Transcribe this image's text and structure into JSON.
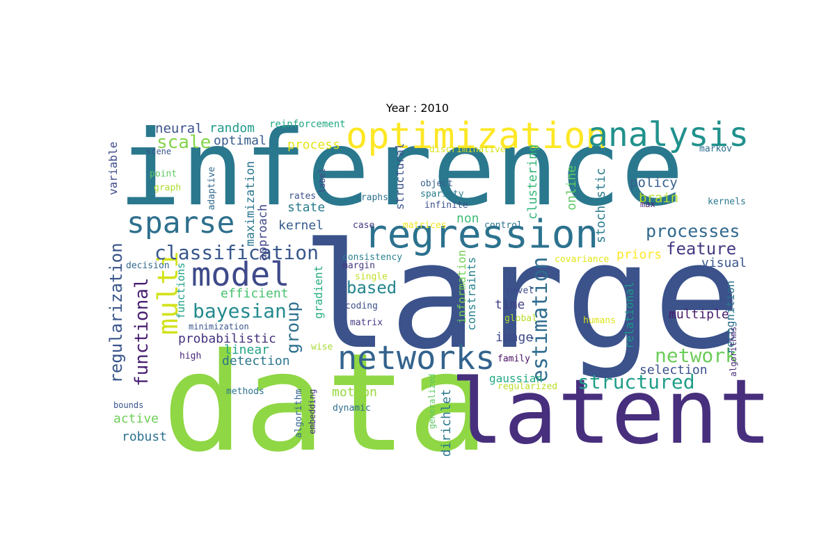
{
  "title": "Year : 2010",
  "words": [
    {
      "text": "inference",
      "color": "#2a788e"
    },
    {
      "text": "large",
      "color": "#3b528b"
    },
    {
      "text": "data",
      "color": "#8fd744"
    },
    {
      "text": "latent",
      "color": "#472f7d"
    },
    {
      "text": "optimization",
      "color": "#fde725"
    },
    {
      "text": "analysis",
      "color": "#21918c"
    },
    {
      "text": "regression",
      "color": "#2c728e"
    },
    {
      "text": "sparse",
      "color": "#2e6f8e"
    },
    {
      "text": "model",
      "color": "#3e4a89"
    },
    {
      "text": "networks",
      "color": "#33638d"
    },
    {
      "text": "multi",
      "color": "#d2e21b"
    },
    {
      "text": "classification",
      "color": "#38588c"
    },
    {
      "text": "regularization",
      "color": "#39568c"
    },
    {
      "text": "bayesian",
      "color": "#238a8d"
    },
    {
      "text": "functional",
      "color": "#481f70"
    },
    {
      "text": "estimation",
      "color": "#2f6c8e"
    },
    {
      "text": "structured",
      "color": "#1f9e89"
    },
    {
      "text": "network",
      "color": "#6ccd5a"
    },
    {
      "text": "processes",
      "color": "#31688e"
    },
    {
      "text": "group",
      "color": "#2d708e"
    },
    {
      "text": "feature",
      "color": "#443a83"
    },
    {
      "text": "based",
      "color": "#25858e"
    },
    {
      "text": "scale",
      "color": "#84d44b"
    },
    {
      "text": "maximization",
      "color": "#2a768e"
    },
    {
      "text": "approach",
      "color": "#3f4788"
    },
    {
      "text": "clustering",
      "color": "#35b779"
    },
    {
      "text": "online",
      "color": "#5ec962"
    },
    {
      "text": "stochastic",
      "color": "#297b8e"
    },
    {
      "text": "policy",
      "color": "#355f8d"
    },
    {
      "text": "brain",
      "color": "#b5de2b"
    },
    {
      "text": "neural",
      "color": "#3b528b"
    },
    {
      "text": "random",
      "color": "#1f9a8a"
    },
    {
      "text": "optimal",
      "color": "#375b8d"
    },
    {
      "text": "process",
      "color": "#e5e419"
    },
    {
      "text": "reinforcement",
      "color": "#22a884"
    },
    {
      "text": "state",
      "color": "#287c8e"
    },
    {
      "text": "kernel",
      "color": "#365c8d"
    },
    {
      "text": "non",
      "color": "#3dbc74"
    },
    {
      "text": "probabilistic",
      "color": "#46327e"
    },
    {
      "text": "linear",
      "color": "#20a386"
    },
    {
      "text": "detection",
      "color": "#2b758e"
    },
    {
      "text": "efficient",
      "color": "#48c16e"
    },
    {
      "text": "time",
      "color": "#424086"
    },
    {
      "text": "image",
      "color": "#3e4989"
    },
    {
      "text": "multiple",
      "color": "#481a6c"
    },
    {
      "text": "visual",
      "color": "#39558c"
    },
    {
      "text": "priors",
      "color": "#fde725"
    },
    {
      "text": "selection",
      "color": "#3b518b"
    },
    {
      "text": "recognition",
      "color": "#2c738e"
    },
    {
      "text": "relational",
      "color": "#1f968b"
    },
    {
      "text": "gradient",
      "color": "#27ad81"
    },
    {
      "text": "information",
      "color": "#75d054"
    },
    {
      "text": "constraints",
      "color": "#26828e"
    },
    {
      "text": "structural",
      "color": "#3a548c"
    },
    {
      "text": "gaussian",
      "color": "#23a983"
    },
    {
      "text": "motion",
      "color": "#95d840"
    },
    {
      "text": "dirichlet",
      "color": "#2a768e"
    },
    {
      "text": "active",
      "color": "#6ece58"
    },
    {
      "text": "robust",
      "color": "#2c718e"
    },
    {
      "text": "variable",
      "color": "#3e4a89"
    },
    {
      "text": "functions",
      "color": "#1fa188"
    },
    {
      "text": "consistency",
      "color": "#277f8e"
    },
    {
      "text": "margin",
      "color": "#453781"
    },
    {
      "text": "single",
      "color": "#c0df25"
    },
    {
      "text": "coding",
      "color": "#3c508b"
    },
    {
      "text": "matrix",
      "color": "#443983"
    },
    {
      "text": "wise",
      "color": "#a8db34"
    },
    {
      "text": "high",
      "color": "#482576"
    },
    {
      "text": "minimization",
      "color": "#3a548c"
    },
    {
      "text": "decision",
      "color": "#31688e"
    },
    {
      "text": "bounds",
      "color": "#39568c"
    },
    {
      "text": "methods",
      "color": "#2c728e"
    },
    {
      "text": "algorithm",
      "color": "#33638d"
    },
    {
      "text": "embedding",
      "color": "#46307e"
    },
    {
      "text": "dynamic",
      "color": "#2e6e8e"
    },
    {
      "text": "generalized",
      "color": "#5cc863"
    },
    {
      "text": "regularized",
      "color": "#b8de29"
    },
    {
      "text": "family",
      "color": "#471063"
    },
    {
      "text": "global",
      "color": "#b5de2b"
    },
    {
      "text": "humans",
      "color": "#dde318"
    },
    {
      "text": "algorithms",
      "color": "#482878"
    },
    {
      "text": "novel",
      "color": "#3e4989"
    },
    {
      "text": "covariance",
      "color": "#e2e418"
    },
    {
      "text": "control",
      "color": "#2c728e"
    },
    {
      "text": "matrices",
      "color": "#f1e51d"
    },
    {
      "text": "case",
      "color": "#453882"
    },
    {
      "text": "graphs",
      "color": "#2d718e"
    },
    {
      "text": "rates",
      "color": "#3b528b"
    },
    {
      "text": "label",
      "color": "#3f4889"
    },
    {
      "text": "object",
      "color": "#355e8d"
    },
    {
      "text": "sparsity",
      "color": "#297a8e"
    },
    {
      "text": "infinite",
      "color": "#3b528b"
    },
    {
      "text": "max",
      "color": "#482173"
    },
    {
      "text": "kernels",
      "color": "#2a788e"
    },
    {
      "text": "markov",
      "color": "#2e6e8e"
    },
    {
      "text": "discriminative",
      "color": "#d8e219"
    },
    {
      "text": "scene",
      "color": "#3b528b"
    },
    {
      "text": "point",
      "color": "#5ec962"
    },
    {
      "text": "graph",
      "color": "#addc30"
    },
    {
      "text": "adaptive",
      "color": "#31688e"
    }
  ]
}
